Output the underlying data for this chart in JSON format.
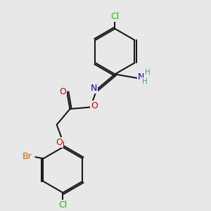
{
  "bg_color": "#e8e8e8",
  "bond_color": "#1a1a1a",
  "bond_width": 1.5,
  "atom_colors": {
    "Cl": "#22bb00",
    "O": "#cc0000",
    "N": "#0000cc",
    "Br": "#cc6600",
    "H": "#4a9a9a",
    "C": "#1a1a1a"
  },
  "font_size": 9.0,
  "figsize": [
    3.0,
    3.0
  ],
  "dpi": 100,
  "xlim": [
    0.0,
    6.0
  ],
  "ylim": [
    0.0,
    6.5
  ]
}
